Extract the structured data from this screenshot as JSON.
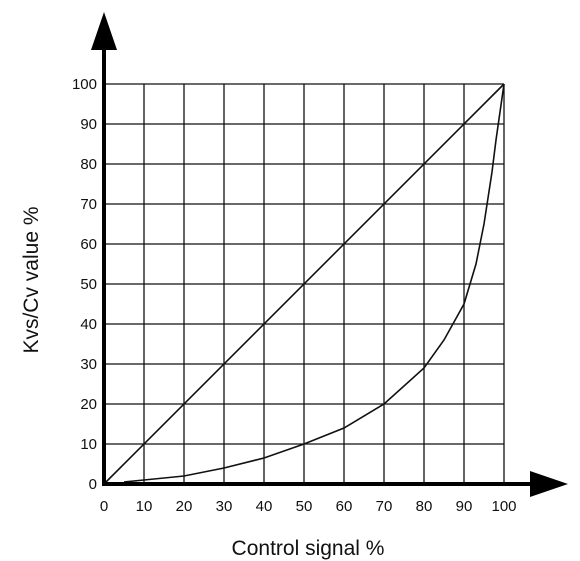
{
  "chart_data": {
    "type": "line",
    "title": "",
    "xlabel": "Control signal %",
    "ylabel": "Kvs/Cv value %",
    "xlim": [
      0,
      100
    ],
    "ylim": [
      0,
      100
    ],
    "x_ticks": [
      "0",
      "10",
      "20",
      "30",
      "40",
      "50",
      "60",
      "70",
      "80",
      "90",
      "100"
    ],
    "y_ticks": [
      "0",
      "10",
      "20",
      "30",
      "40",
      "50",
      "60",
      "70",
      "80",
      "90",
      "100"
    ],
    "grid": true,
    "legend": "none",
    "series": [
      {
        "x": [
          0,
          100
        ],
        "y": [
          0,
          100
        ]
      },
      {
        "x": [
          5,
          10,
          20,
          30,
          40,
          50,
          60,
          70,
          80,
          85,
          90,
          93,
          95,
          97,
          98,
          99,
          100
        ],
        "y": [
          0.5,
          1,
          2,
          4,
          6.5,
          10,
          14,
          20,
          29,
          36,
          45,
          55,
          65,
          78,
          86,
          93,
          100
        ]
      }
    ]
  }
}
